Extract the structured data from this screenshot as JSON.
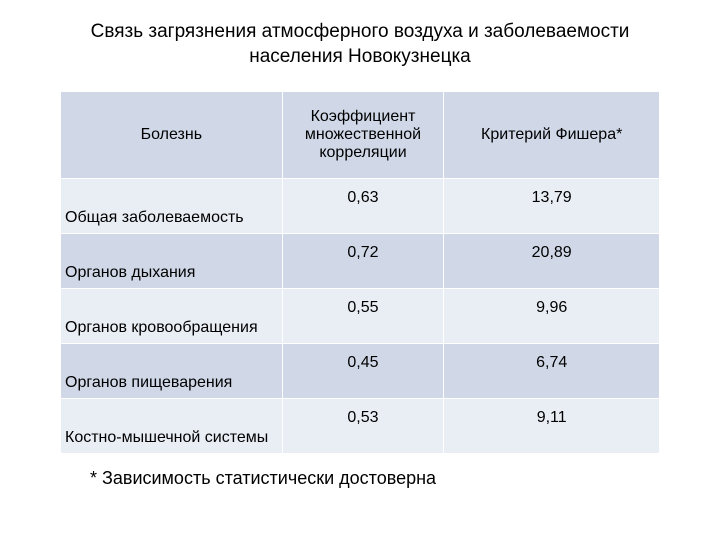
{
  "title": "Связь загрязнения атмосферного воздуха и заболеваемости населения Новокузнецка",
  "table": {
    "columns": [
      "Болезнь",
      "Коэффициент множественной корреляции",
      "Критерий Фишера*"
    ],
    "rows": [
      [
        "Общая заболеваемость",
        "0,63",
        "13,79"
      ],
      [
        "Органов дыхания",
        "0,72",
        "20,89"
      ],
      [
        "Органов кровообращения",
        "0,55",
        "9,96"
      ],
      [
        "Органов пищеварения",
        "0,45",
        "6,74"
      ],
      [
        "Костно-мышечной системы",
        "0,53",
        "9,11"
      ]
    ],
    "header_bg": "#d0d8e8",
    "row_bg_odd": "#e9edf4",
    "row_bg_even": "#d0d8e8",
    "border_color": "#ffffff",
    "text_color": "#000000",
    "font_size": 16,
    "header_font_size": 16
  },
  "footnote": "* Зависимость статистически достоверна",
  "background_color": "#ffffff"
}
